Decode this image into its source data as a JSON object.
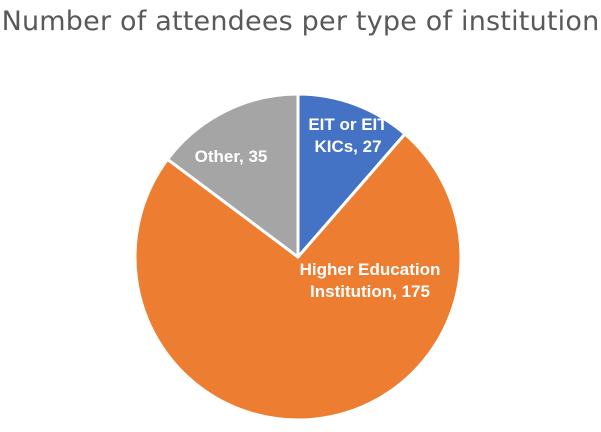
{
  "chart_data": {
    "type": "pie",
    "title": "Number of attendees per type of institution",
    "categories": [
      "EIT or EIT KICs",
      "Higher Education Institution",
      "Other"
    ],
    "values": [
      27,
      175,
      35
    ],
    "data_labels": [
      [
        "EIT or EIT",
        "KICs, 27"
      ],
      [
        "Higher Education",
        "Institution, 175"
      ],
      [
        "Other, 35"
      ]
    ],
    "colors": [
      "#4472C4",
      "#ED7D31",
      "#A5A5A5"
    ],
    "start": "12 o'clock",
    "direction": "clockwise",
    "legend": "none"
  }
}
